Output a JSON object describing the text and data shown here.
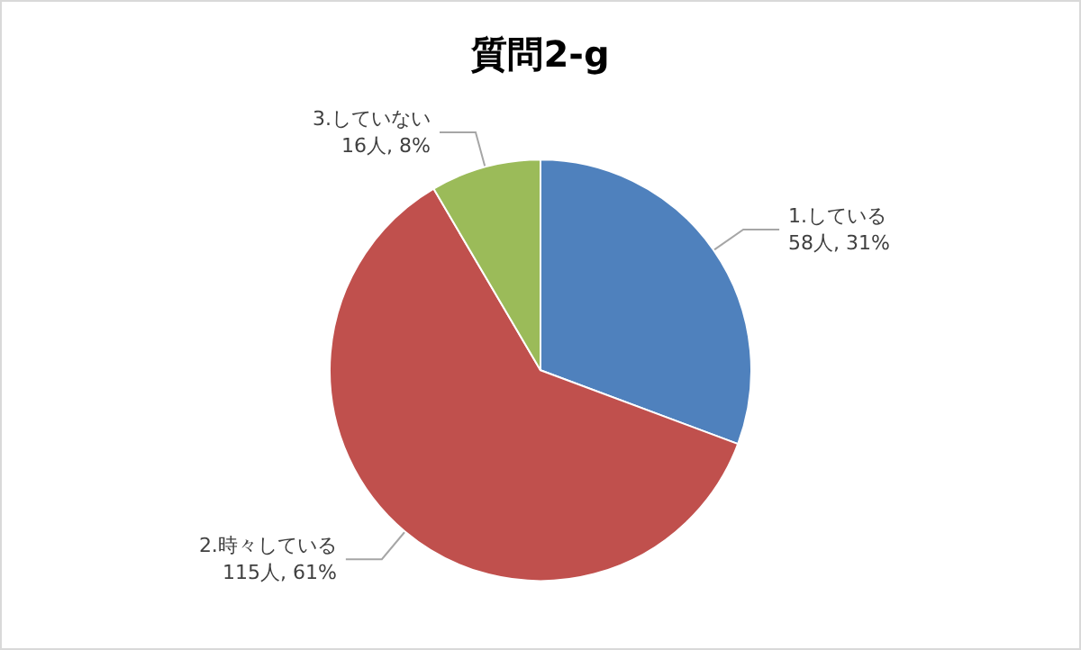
{
  "chart_data": {
    "type": "pie",
    "title": "質問2-g",
    "categories": [
      "1.している",
      "2.時々している",
      "3.していない"
    ],
    "values": [
      58,
      115,
      16
    ],
    "colors": [
      "#4f81bd",
      "#c0504d",
      "#9bbb59"
    ],
    "value_labels": [
      "58人, 31%",
      "115人, 61%",
      "16人, 8%"
    ],
    "legend": false
  }
}
